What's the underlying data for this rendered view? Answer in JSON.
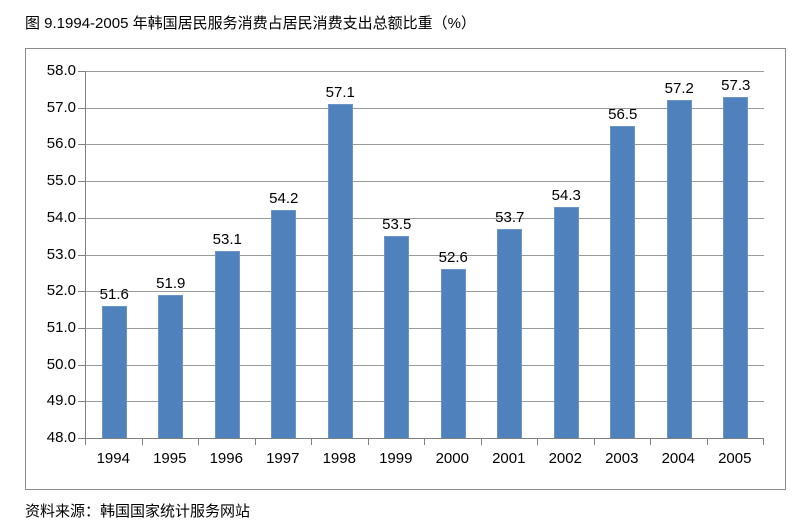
{
  "title": "图 9.1994-2005 年韩国居民服务消费占居民消费支出总额比重（%）",
  "source": "资料来源：韩国国家统计服务网站",
  "chart_data": {
    "type": "bar",
    "categories": [
      "1994",
      "1995",
      "1996",
      "1997",
      "1998",
      "1999",
      "2000",
      "2001",
      "2002",
      "2003",
      "2004",
      "2005"
    ],
    "values": [
      51.6,
      51.9,
      53.1,
      54.2,
      57.1,
      53.5,
      52.6,
      53.7,
      54.3,
      56.5,
      57.2,
      57.3
    ],
    "title": "图 9.1994-2005 年韩国居民服务消费占居民消费支出总额比重（%）",
    "xlabel": "",
    "ylabel": "",
    "ylim": [
      48.0,
      58.0
    ],
    "ytick_step": 1.0,
    "grid": true,
    "legend": "none",
    "data_labels": true,
    "value_decimals": 1,
    "colors": {
      "bar_fill": "#4F81BD",
      "bar_border": "#6C96C8",
      "gridline": "#9A9A9A",
      "axis": "#808080",
      "chart_border": "#8C8C8C",
      "text": "#000000"
    }
  }
}
